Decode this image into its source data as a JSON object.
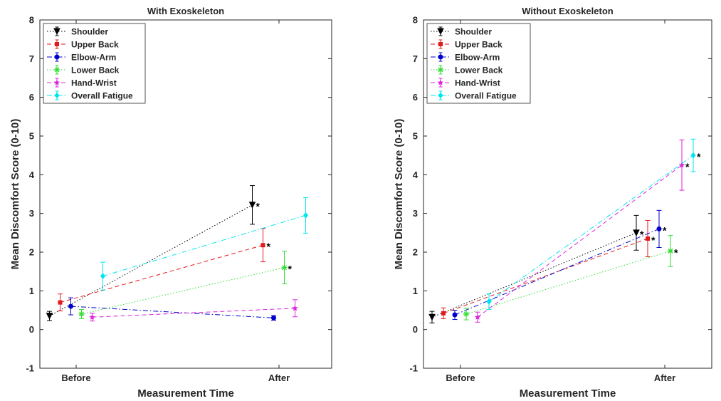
{
  "chart_data": [
    {
      "type": "line",
      "title": "With Exoskeleton",
      "xlabel": "Measurement Time",
      "ylabel": "Mean Discomfort Score (0-10)",
      "categories": [
        "Before",
        "After"
      ],
      "ylim": [
        -1,
        8
      ],
      "yticks": [
        -1,
        0,
        1,
        2,
        3,
        4,
        5,
        6,
        7,
        8
      ],
      "grid": false,
      "legend_position": "top-left",
      "series": [
        {
          "name": "Shoulder",
          "color": "#000000",
          "dash": "dotted",
          "marker": "triangle-down",
          "values": [
            0.35,
            3.22
          ],
          "err": [
            0.12,
            0.5
          ],
          "star": [
            false,
            true
          ]
        },
        {
          "name": "Upper Back",
          "color": "#e31a1c",
          "dash": "dashed",
          "marker": "square",
          "values": [
            0.7,
            2.18
          ],
          "err": [
            0.22,
            0.43
          ],
          "star": [
            false,
            true
          ]
        },
        {
          "name": "Elbow-Arm",
          "color": "#0000cc",
          "dash": "dashdot",
          "marker": "circle",
          "values": [
            0.6,
            0.3
          ],
          "err": [
            0.22,
            0.06
          ],
          "star": [
            false,
            false
          ]
        },
        {
          "name": "Lower Back",
          "color": "#33dd33",
          "dash": "dotted",
          "marker": "asterisk",
          "values": [
            0.4,
            1.6
          ],
          "err": [
            0.12,
            0.42
          ],
          "star": [
            false,
            true
          ]
        },
        {
          "name": "Hand-Wrist",
          "color": "#dd22dd",
          "dash": "dashed",
          "marker": "star",
          "values": [
            0.32,
            0.55
          ],
          "err": [
            0.1,
            0.22
          ],
          "star": [
            false,
            false
          ]
        },
        {
          "name": "Overall Fatigue",
          "color": "#00e5ee",
          "dash": "dashdot",
          "marker": "diamond",
          "values": [
            1.38,
            2.95
          ],
          "err": [
            0.36,
            0.46
          ],
          "star": [
            false,
            false
          ]
        }
      ]
    },
    {
      "type": "line",
      "title": "Without Exoskeleton",
      "xlabel": "Measurement Time",
      "ylabel": "Mean Discomfort Score (0-10)",
      "categories": [
        "Before",
        "After"
      ],
      "ylim": [
        -1,
        8
      ],
      "yticks": [
        -1,
        0,
        1,
        2,
        3,
        4,
        5,
        6,
        7,
        8
      ],
      "grid": false,
      "legend_position": "top-left",
      "series": [
        {
          "name": "Shoulder",
          "color": "#000000",
          "dash": "dotted",
          "marker": "triangle-down",
          "values": [
            0.32,
            2.5
          ],
          "err": [
            0.15,
            0.45
          ],
          "star": [
            false,
            true
          ]
        },
        {
          "name": "Upper Back",
          "color": "#e31a1c",
          "dash": "dashed",
          "marker": "square",
          "values": [
            0.42,
            2.35
          ],
          "err": [
            0.14,
            0.47
          ],
          "star": [
            false,
            true
          ]
        },
        {
          "name": "Elbow-Arm",
          "color": "#0000cc",
          "dash": "dashdot",
          "marker": "circle",
          "values": [
            0.38,
            2.6
          ],
          "err": [
            0.12,
            0.48
          ],
          "star": [
            false,
            true
          ]
        },
        {
          "name": "Lower Back",
          "color": "#33dd33",
          "dash": "dotted",
          "marker": "asterisk",
          "values": [
            0.4,
            2.03
          ],
          "err": [
            0.15,
            0.4
          ],
          "star": [
            false,
            true
          ]
        },
        {
          "name": "Hand-Wrist",
          "color": "#dd22dd",
          "dash": "dashed",
          "marker": "star",
          "values": [
            0.32,
            4.25
          ],
          "err": [
            0.13,
            0.65
          ],
          "star": [
            false,
            true
          ]
        },
        {
          "name": "Overall Fatigue",
          "color": "#00e5ee",
          "dash": "dashdot",
          "marker": "diamond",
          "values": [
            0.72,
            4.5
          ],
          "err": [
            0.2,
            0.42
          ],
          "star": [
            false,
            true
          ]
        }
      ]
    }
  ],
  "significance_marker": "*"
}
